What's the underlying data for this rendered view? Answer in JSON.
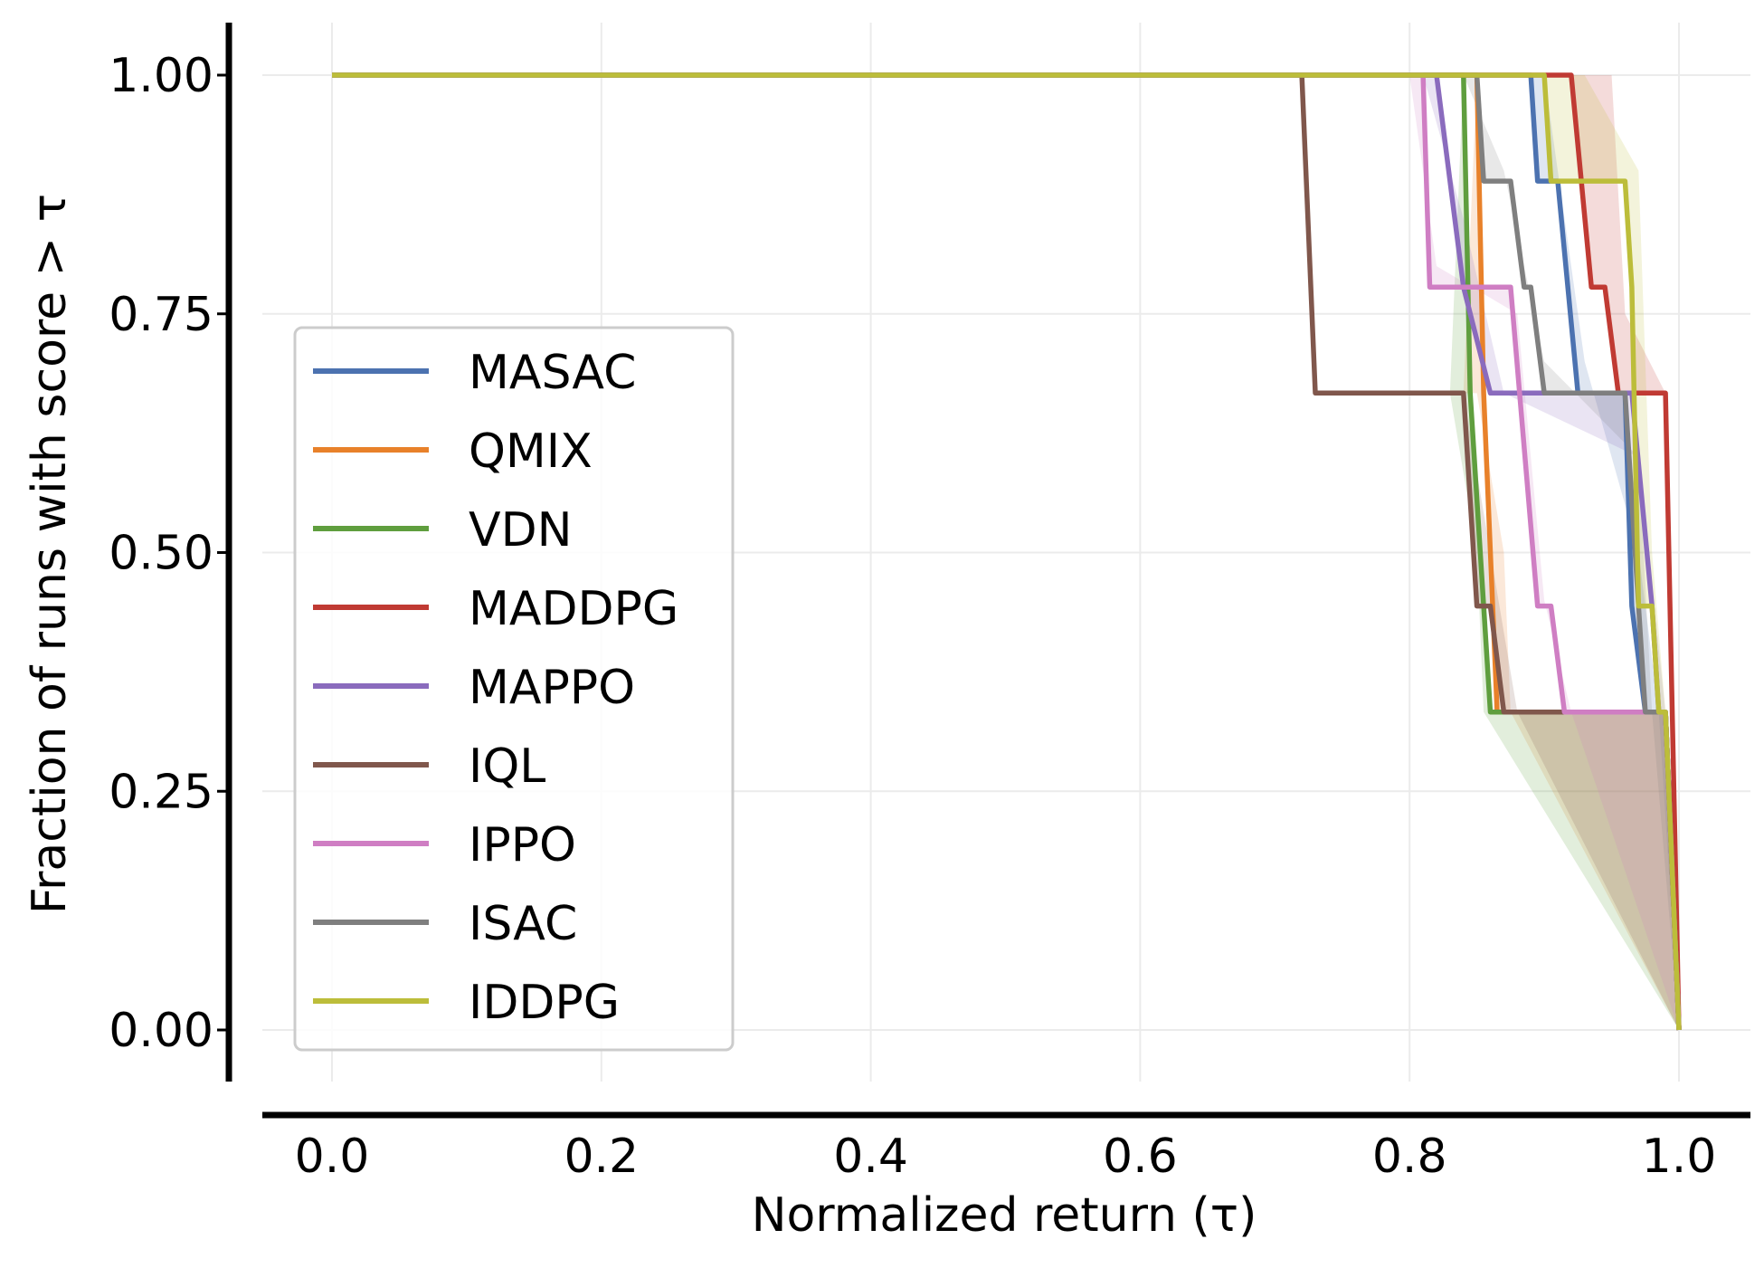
{
  "chart_data": {
    "type": "line",
    "title": "",
    "xlabel": "Normalized return (τ)",
    "ylabel": "Fraction of runs with score > τ",
    "xlim": [
      -0.05,
      1.05
    ],
    "ylim": [
      -0.055,
      1.055
    ],
    "xticks": [
      0.0,
      0.2,
      0.4,
      0.6,
      0.8,
      1.0
    ],
    "xtick_labels": [
      "0.0",
      "0.2",
      "0.4",
      "0.6",
      "0.8",
      "1.0"
    ],
    "yticks": [
      0.0,
      0.25,
      0.5,
      0.75,
      1.0
    ],
    "ytick_labels": [
      "0.00",
      "0.25",
      "0.50",
      "0.75",
      "1.00"
    ],
    "grid": true,
    "legend_position": "lower-left",
    "series": [
      {
        "name": "MASAC",
        "color": "#4c72b0",
        "points": [
          [
            0,
            1
          ],
          [
            0.89,
            1
          ],
          [
            0.895,
            0.889
          ],
          [
            0.91,
            0.889
          ],
          [
            0.925,
            0.667
          ],
          [
            0.96,
            0.667
          ],
          [
            0.965,
            0.444
          ],
          [
            0.975,
            0.333
          ],
          [
            0.99,
            0.333
          ],
          [
            1.0,
            0
          ]
        ],
        "band": [
          [
            0.88,
            1
          ],
          [
            0.9,
            1
          ],
          [
            0.93,
            0.7
          ],
          [
            0.97,
            0.5
          ],
          [
            0.985,
            0.333
          ],
          [
            1.0,
            0
          ]
        ]
      },
      {
        "name": "QMIX",
        "color": "#e8812a",
        "points": [
          [
            0,
            1
          ],
          [
            0.85,
            1
          ],
          [
            0.855,
            0.667
          ],
          [
            0.865,
            0.333
          ],
          [
            0.99,
            0.333
          ],
          [
            1.0,
            0
          ]
        ],
        "band": [
          [
            0.84,
            0.667
          ],
          [
            0.85,
            0.667
          ],
          [
            0.87,
            0.5
          ],
          [
            0.875,
            0.333
          ],
          [
            1.0,
            0
          ]
        ]
      },
      {
        "name": "VDN",
        "color": "#5f9e3e",
        "points": [
          [
            0,
            1
          ],
          [
            0.84,
            1
          ],
          [
            0.845,
            0.667
          ],
          [
            0.855,
            0.444
          ],
          [
            0.86,
            0.333
          ],
          [
            0.99,
            0.333
          ],
          [
            1.0,
            0
          ]
        ],
        "band": [
          [
            0.83,
            0.667
          ],
          [
            0.85,
            0.5
          ],
          [
            0.855,
            0.333
          ],
          [
            1.0,
            0
          ]
        ]
      },
      {
        "name": "MADDPG",
        "color": "#c03a33",
        "points": [
          [
            0,
            1
          ],
          [
            0.915,
            1
          ],
          [
            0.92,
            1
          ],
          [
            0.935,
            0.778
          ],
          [
            0.945,
            0.778
          ],
          [
            0.955,
            0.667
          ],
          [
            0.99,
            0.667
          ],
          [
            1.0,
            0
          ]
        ],
        "band": [
          [
            0.9,
            1
          ],
          [
            0.95,
            1
          ],
          [
            0.96,
            0.75
          ],
          [
            0.99,
            0.667
          ],
          [
            1.0,
            0
          ]
        ]
      },
      {
        "name": "MAPPO",
        "color": "#8a6bbd",
        "points": [
          [
            0,
            1
          ],
          [
            0.82,
            1
          ],
          [
            0.84,
            0.778
          ],
          [
            0.86,
            0.667
          ],
          [
            0.965,
            0.667
          ],
          [
            0.98,
            0.444
          ],
          [
            0.985,
            0.333
          ],
          [
            0.99,
            0.333
          ],
          [
            1.0,
            0
          ]
        ],
        "band": [
          [
            0.81,
            1
          ],
          [
            0.84,
            0.85
          ],
          [
            0.87,
            0.667
          ],
          [
            0.97,
            0.6
          ],
          [
            0.99,
            0.333
          ],
          [
            1.0,
            0
          ]
        ]
      },
      {
        "name": "IQL",
        "color": "#80574c",
        "points": [
          [
            0,
            1
          ],
          [
            0.72,
            1
          ],
          [
            0.73,
            0.667
          ],
          [
            0.84,
            0.667
          ],
          [
            0.85,
            0.444
          ],
          [
            0.86,
            0.444
          ],
          [
            0.87,
            0.333
          ],
          [
            0.99,
            0.333
          ],
          [
            1.0,
            0
          ]
        ],
        "band": [
          [
            0.84,
            0.667
          ],
          [
            0.86,
            0.5
          ],
          [
            0.88,
            0.333
          ],
          [
            1.0,
            0
          ]
        ]
      },
      {
        "name": "IPPO",
        "color": "#cf7ec3",
        "points": [
          [
            0,
            1
          ],
          [
            0.81,
            1
          ],
          [
            0.815,
            0.778
          ],
          [
            0.875,
            0.778
          ],
          [
            0.895,
            0.444
          ],
          [
            0.905,
            0.444
          ],
          [
            0.915,
            0.333
          ],
          [
            0.99,
            0.333
          ],
          [
            1.0,
            0
          ]
        ],
        "band": [
          [
            0.8,
            1
          ],
          [
            0.82,
            0.8
          ],
          [
            0.88,
            0.75
          ],
          [
            0.9,
            0.45
          ],
          [
            0.92,
            0.333
          ],
          [
            1.0,
            0
          ]
        ]
      },
      {
        "name": "ISAC",
        "color": "#7f7f7f",
        "points": [
          [
            0,
            1
          ],
          [
            0.85,
            1
          ],
          [
            0.855,
            0.889
          ],
          [
            0.875,
            0.889
          ],
          [
            0.885,
            0.778
          ],
          [
            0.89,
            0.778
          ],
          [
            0.9,
            0.667
          ],
          [
            0.96,
            0.667
          ],
          [
            0.97,
            0.444
          ],
          [
            0.975,
            0.333
          ],
          [
            0.99,
            0.333
          ],
          [
            1.0,
            0
          ]
        ],
        "band": [
          [
            0.84,
            1
          ],
          [
            0.87,
            0.9
          ],
          [
            0.9,
            0.7
          ],
          [
            0.97,
            0.6
          ],
          [
            0.98,
            0.333
          ],
          [
            1.0,
            0
          ]
        ]
      },
      {
        "name": "IDDPG",
        "color": "#bcbd3a",
        "points": [
          [
            0,
            1
          ],
          [
            0.9,
            1
          ],
          [
            0.905,
            0.889
          ],
          [
            0.96,
            0.889
          ],
          [
            0.965,
            0.778
          ],
          [
            0.97,
            0.444
          ],
          [
            0.98,
            0.444
          ],
          [
            0.985,
            0.333
          ],
          [
            0.99,
            0.333
          ],
          [
            1.0,
            0
          ]
        ],
        "band": [
          [
            0.89,
            1
          ],
          [
            0.93,
            1
          ],
          [
            0.97,
            0.9
          ],
          [
            0.98,
            0.5
          ],
          [
            0.99,
            0.333
          ],
          [
            1.0,
            0
          ]
        ]
      }
    ]
  }
}
